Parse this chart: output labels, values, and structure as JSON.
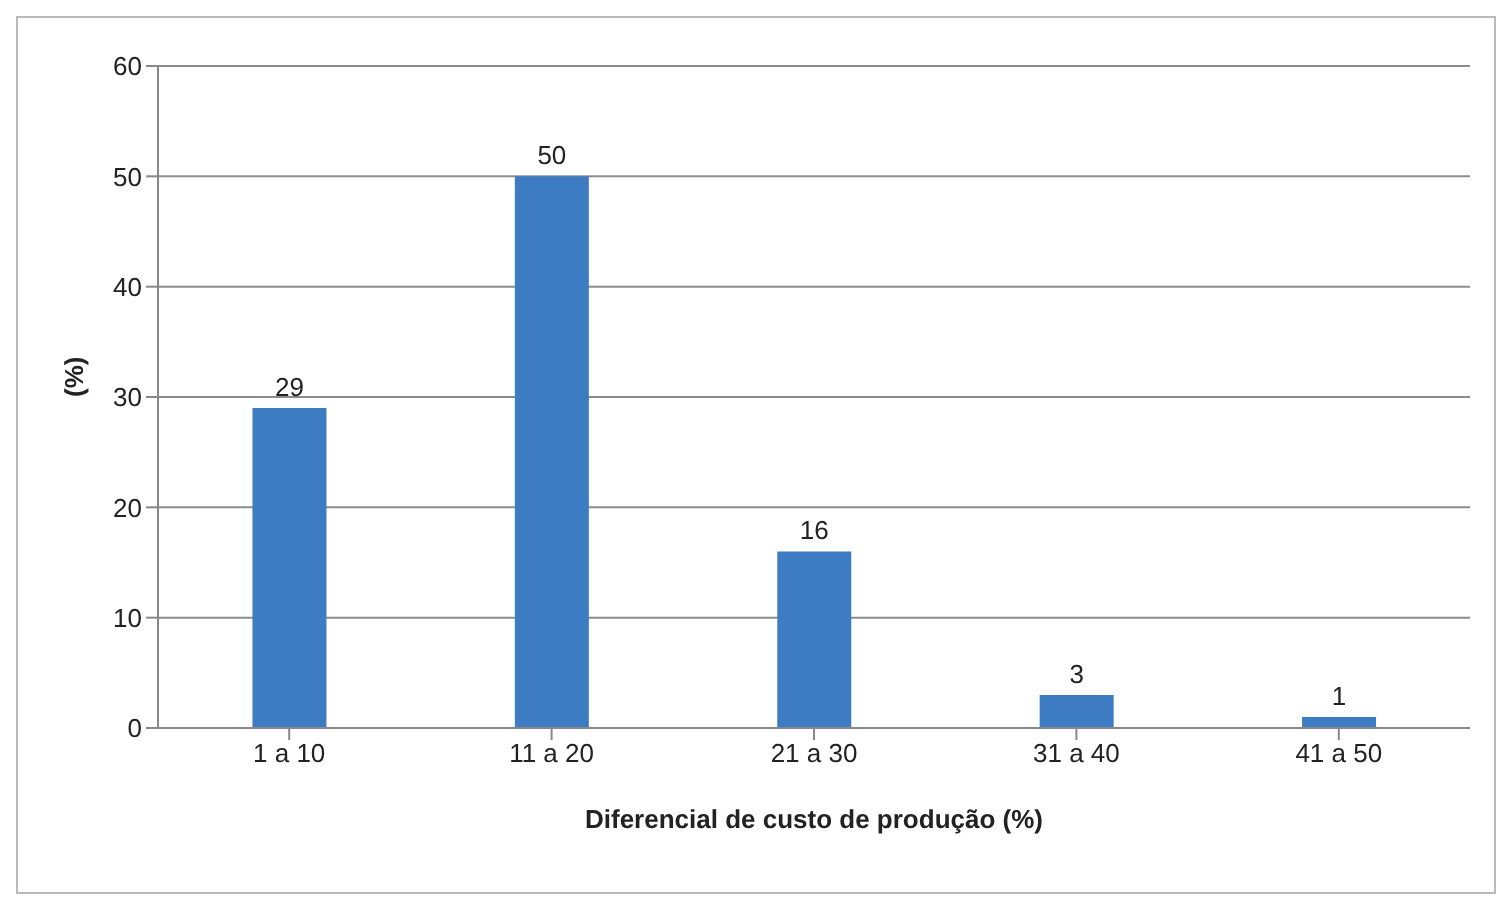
{
  "chart_data": {
    "type": "bar",
    "xlabel": "Diferencial de custo de produção (%)",
    "ylabel": "(%)",
    "categories": [
      "1 a 10",
      "11 a 20",
      "21 a 30",
      "31 a 40",
      "41 a 50"
    ],
    "values": [
      29,
      50,
      16,
      3,
      1
    ],
    "color": "#3d7cc3",
    "ylim": [
      0,
      60
    ],
    "yticks": [
      0,
      10,
      20,
      30,
      40,
      50,
      60
    ],
    "grid": "y",
    "data_labels": true
  }
}
